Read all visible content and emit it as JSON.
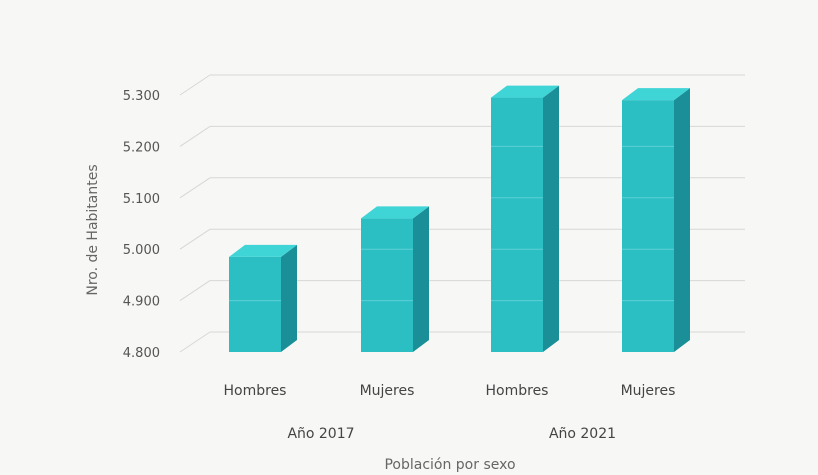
{
  "chart_data": {
    "type": "bar",
    "title": "",
    "ylabel": "Nro. de Habitantes",
    "xlabel": "Población por sexo",
    "ylim": [
      4800,
      5300
    ],
    "yticks": [
      "4.800",
      "4.900",
      "5.000",
      "5.100",
      "5.200",
      "5.300"
    ],
    "ytick_values": [
      4800,
      4900,
      5000,
      5100,
      5200,
      5300
    ],
    "grid": true,
    "groups": [
      {
        "label": "Año 2017",
        "categories": [
          "Hombres",
          "Mujeres"
        ],
        "values": [
          4985,
          5060
        ]
      },
      {
        "label": "Año 2021",
        "categories": [
          "Hombres",
          "Mujeres"
        ],
        "values": [
          5295,
          5290
        ]
      }
    ],
    "colors": {
      "front": "#2bbfc4",
      "side": "#1a8f97",
      "top": "#3fd4d6",
      "grid": "#d7d7d7"
    }
  }
}
